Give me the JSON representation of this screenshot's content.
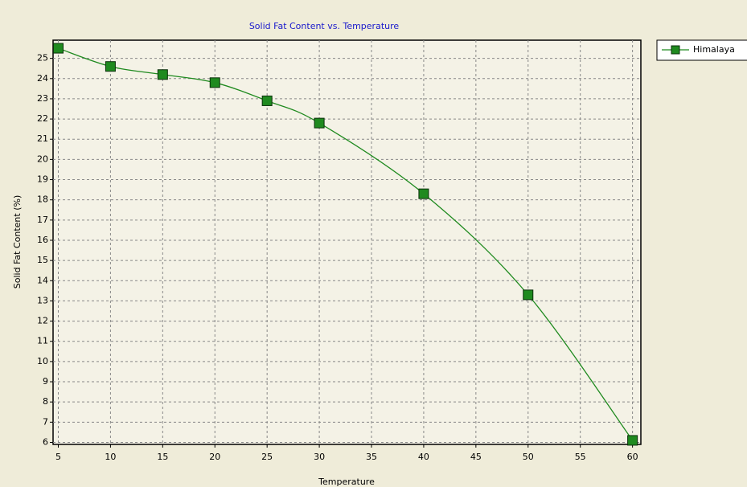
{
  "chart_data": {
    "type": "line",
    "title": "Solid Fat Content vs. Temperature",
    "x_label": "Temperature",
    "y_label": "Solid Fat Content (%)",
    "x": [
      5,
      10,
      15,
      20,
      25,
      30,
      40,
      50,
      60
    ],
    "series": [
      {
        "name": "Himalaya",
        "color": "#1f8a1f",
        "values": [
          25.5,
          24.6,
          24.2,
          23.8,
          22.9,
          21.8,
          18.3,
          13.3,
          6.1
        ]
      }
    ],
    "xlim": [
      4.5,
      60.8
    ],
    "xticks": [
      5,
      10,
      15,
      20,
      25,
      30,
      35,
      40,
      45,
      50,
      55,
      60
    ],
    "ylim": [
      5.9,
      25.9
    ],
    "yticks": [
      6,
      7,
      8,
      9,
      10,
      11,
      12,
      13,
      14,
      15,
      16,
      17,
      18,
      19,
      20,
      21,
      22,
      23,
      24,
      25
    ],
    "grid": true,
    "legend": "right"
  }
}
